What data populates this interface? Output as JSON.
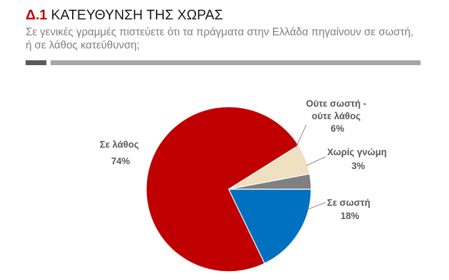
{
  "header": {
    "code": "Δ.1",
    "title": "ΚΑΤΕΥΘΥΝΣΗ ΤΗΣ ΧΩΡΑΣ",
    "subtitle": "Σε γενικές γραμμές πιστεύετε ότι τα πράγματα στην Ελλάδα πηγαίνουν σε σωστή, ή σε λάθος κατεύθυνση;"
  },
  "colors": {
    "accent": "#c00000",
    "divider_dark": "#595959",
    "divider_light": "#a6a6a6"
  },
  "chart_data": {
    "type": "pie",
    "title": "",
    "slices": [
      {
        "name": "Σε σωστή",
        "value": 18,
        "label": "18%",
        "color": "#0070c0"
      },
      {
        "name": "Σε λάθος",
        "value": 74,
        "label": "74%",
        "color": "#c00000"
      },
      {
        "name": "Ούτε σωστή - ούτε λάθος",
        "value": 6,
        "label": "6%",
        "color": "#eee0c0"
      },
      {
        "name": "Χωρίς γνώμη",
        "value": 3,
        "label": "3%",
        "color": "#808080"
      }
    ]
  }
}
